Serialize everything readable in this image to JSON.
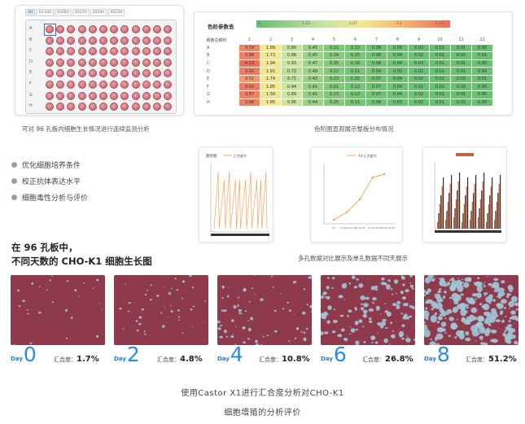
{
  "plate": {
    "tabs": [
      "3H",
      "10.440",
      "1018H",
      "2017H",
      "2020H",
      "4013H"
    ],
    "rows": [
      "A",
      "B",
      "C",
      "D",
      "E",
      "F",
      "G",
      "H"
    ],
    "caption": "可对 96 孔板内细胞生长情况进行连续监测分析"
  },
  "heatmap": {
    "title": "色阶参数丢",
    "row_header": "细胞总聚积",
    "scale_ticks": [
      "0",
      "1.03",
      "2.07",
      "3.1",
      "4.13"
    ],
    "columns": [
      "1",
      "2",
      "3",
      "4",
      "5",
      "6",
      "7",
      "8",
      "9",
      "10",
      "11",
      "12"
    ],
    "rows": [
      {
        "label": "A",
        "values": [
          "3.79",
          "1.89",
          "0.80",
          "0.45",
          "0.21",
          "0.13",
          "0.08",
          "0.05",
          "0.03",
          "0.01",
          "0.01",
          "0.00"
        ]
      },
      {
        "label": "B",
        "values": [
          "3.84",
          "1.73",
          "0.88",
          "0.45",
          "0.24",
          "0.15",
          "0.08",
          "0.04",
          "0.02",
          "0.01",
          "0.02",
          "0.01"
        ]
      },
      {
        "label": "C",
        "values": [
          "4.13",
          "1.94",
          "0.93",
          "0.47",
          "0.25",
          "0.16",
          "0.08",
          "0.04",
          "0.03",
          "0.01",
          "0.01",
          "0.00"
        ]
      },
      {
        "label": "D",
        "values": [
          "3.93",
          "1.91",
          "0.72",
          "0.49",
          "0.22",
          "0.11",
          "0.09",
          "0.03",
          "0.02",
          "0.01",
          "0.01",
          "0.00"
        ]
      },
      {
        "label": "E",
        "values": [
          "3.51",
          "1.74",
          "0.71",
          "0.42",
          "0.23",
          "0.10",
          "0.07",
          "0.04",
          "0.02",
          "0.01",
          "0.03",
          "0.01"
        ]
      },
      {
        "label": "F",
        "values": [
          "3.93",
          "1.85",
          "0.94",
          "0.41",
          "0.21",
          "0.12",
          "0.07",
          "0.04",
          "0.02",
          "0.01",
          "0.02",
          "0.00"
        ]
      },
      {
        "label": "G",
        "values": [
          "3.87",
          "1.58",
          "0.89",
          "0.41",
          "0.23",
          "0.12",
          "0.07",
          "0.04",
          "0.02",
          "0.01",
          "0.01",
          "0.00"
        ]
      },
      {
        "label": "H",
        "values": [
          "3.86",
          "1.85",
          "0.95",
          "0.44",
          "0.25",
          "0.11",
          "0.08",
          "0.03",
          "0.02",
          "0.01",
          "0.02",
          "0.00"
        ]
      }
    ],
    "caption": "色阶图直观展示整板分布情况"
  },
  "bullets": [
    "优化细胞培养条件",
    "校正抗体表达水平",
    "细胞毒性分析与评价"
  ],
  "charts": {
    "caption": "多孔数据对比展示及单孔数据不同天展示",
    "chart1_title": "趋势图",
    "chart1_legend": "汇合度%",
    "chart2_legend": "A4-汇合度%",
    "chart2_xticks": [
      "20",
      "15.244-10.20",
      "0.20-16",
      "1120-25.20",
      "1520-25.20"
    ]
  },
  "growth": {
    "heading_line1": "在 96 孔板中，",
    "heading_line2": "不同天数的 CHO-K1 细胞生长图",
    "day_word": "Day",
    "conf_label": "汇合度：",
    "days": [
      {
        "day": "0",
        "confluence": "1.7%"
      },
      {
        "day": "2",
        "confluence": "4.8%"
      },
      {
        "day": "4",
        "confluence": "10.8%"
      },
      {
        "day": "6",
        "confluence": "26.8%"
      },
      {
        "day": "8",
        "confluence": "51.2%"
      }
    ]
  },
  "footer": {
    "line1": "使用Castor X1进行汇合度分析对CHO-K1",
    "line2": "细胞增殖的分析评价"
  },
  "colors": {
    "accent": "#2b8be0",
    "cell_background": "#8e3a4c",
    "cell_colonies": "#9ec8d8",
    "heat_high": "#ee6e5a",
    "heat_low": "#68c070"
  }
}
